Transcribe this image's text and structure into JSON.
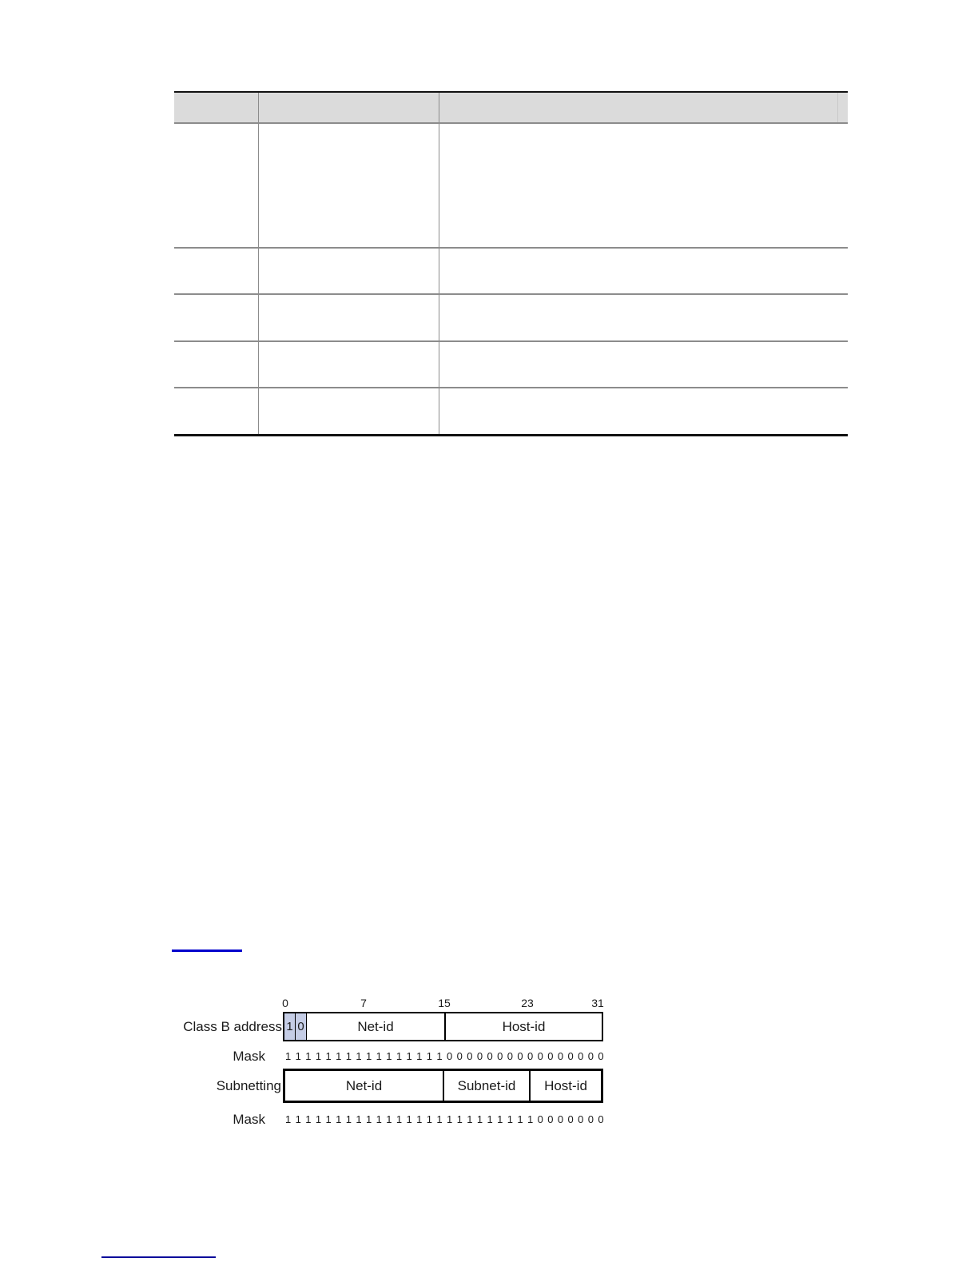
{
  "page": {
    "background": "#ffffff"
  },
  "table": {
    "header": {
      "columns": [
        "",
        "",
        ""
      ]
    },
    "rows": [
      [
        "",
        "",
        ""
      ],
      [
        "",
        "",
        ""
      ],
      [
        "",
        "",
        ""
      ],
      [
        "",
        "",
        ""
      ],
      [
        "",
        "",
        ""
      ]
    ]
  },
  "figure_link": {
    "text": ""
  },
  "footer_link": {
    "text": ""
  },
  "diagram": {
    "bit_scale": [
      "0",
      "7",
      "15",
      "23",
      "31"
    ],
    "class_b": {
      "label": "Class B address",
      "prefix_bits": [
        "1",
        "0"
      ],
      "fields": [
        "Net-id",
        "Host-id"
      ]
    },
    "mask_class_b": {
      "label": "Mask",
      "bits": "11111111111111110000000000000000"
    },
    "subnetting": {
      "label": "Subnetting",
      "fields": [
        "Net-id",
        "Subnet-id",
        "Host-id"
      ]
    },
    "mask_subnet": {
      "label": "Mask",
      "bits": "11111111111111111111111110000000"
    },
    "colors": {
      "bit_cell_fill": "#c5cde6",
      "box_border": "#000000",
      "figure_link_blue": "#0000cc",
      "footer_link_navy": "#000099",
      "table_header_bg": "#dbdbdb",
      "table_line_gray": "#8c8c8c",
      "table_border_black": "#111111"
    }
  }
}
